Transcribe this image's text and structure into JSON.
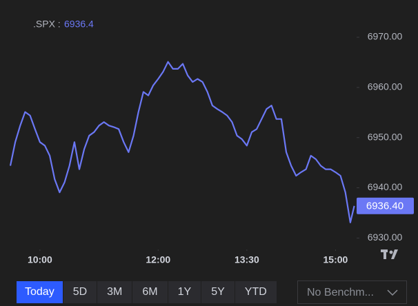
{
  "chart_data": {
    "type": "line",
    "title": ".SPX :",
    "x": [
      "09:30",
      "09:35",
      "09:40",
      "09:45",
      "09:50",
      "09:55",
      "10:00",
      "10:05",
      "10:10",
      "10:15",
      "10:20",
      "10:25",
      "10:30",
      "10:35",
      "10:40",
      "10:45",
      "10:50",
      "10:55",
      "11:00",
      "11:05",
      "11:10",
      "11:15",
      "11:20",
      "11:25",
      "11:30",
      "11:35",
      "11:40",
      "11:45",
      "11:50",
      "11:55",
      "12:00",
      "12:05",
      "12:10",
      "12:15",
      "12:20",
      "12:25",
      "12:30",
      "12:35",
      "12:40",
      "12:45",
      "12:50",
      "12:55",
      "13:00",
      "13:05",
      "13:10",
      "13:15",
      "13:20",
      "13:25",
      "13:30",
      "13:35",
      "13:40",
      "13:45",
      "13:50",
      "13:55",
      "14:00",
      "14:05",
      "14:10",
      "14:15",
      "14:20",
      "14:25",
      "14:30",
      "14:35",
      "14:40",
      "14:45",
      "14:50",
      "14:55",
      "15:00",
      "15:05",
      "15:10",
      "15:15",
      "15:19"
    ],
    "series": [
      {
        "name": ".SPX",
        "color": "#6b78f5",
        "values": [
          6944.4,
          6949.1,
          6952.4,
          6955.1,
          6954.4,
          6951.7,
          6949.1,
          6948.4,
          6946.4,
          6941.7,
          6939.1,
          6941.1,
          6944.4,
          6949.1,
          6943.7,
          6947.7,
          6950.4,
          6951.1,
          6952.4,
          6953.1,
          6952.4,
          6952.1,
          6951.7,
          6949.1,
          6947.1,
          6950.4,
          6955.1,
          6959.1,
          6958.4,
          6960.4,
          6961.7,
          6963.1,
          6965.1,
          6963.7,
          6963.7,
          6964.7,
          6962.4,
          6961.1,
          6961.7,
          6961.1,
          6959.1,
          6956.4,
          6955.7,
          6955.1,
          6954.4,
          6953.1,
          6950.4,
          6949.7,
          6948.4,
          6951.1,
          6951.7,
          6953.7,
          6955.7,
          6956.4,
          6953.7,
          6953.7,
          6947.1,
          6944.4,
          6942.4,
          6943.1,
          6943.7,
          6946.4,
          6945.7,
          6944.4,
          6943.7,
          6943.7,
          6943.1,
          6942.4,
          6939.1,
          6933.1,
          6936.4
        ],
        "value_labels": [
          null,
          null,
          null,
          null,
          null,
          null,
          null,
          null,
          null,
          null,
          null,
          null,
          null,
          null,
          null,
          null,
          null,
          null,
          null,
          null,
          null,
          null,
          null,
          null,
          null,
          null,
          null,
          null,
          null,
          null,
          null,
          null,
          null,
          null,
          null,
          null,
          null,
          null,
          null,
          null,
          null,
          null,
          null,
          null,
          null,
          null,
          null,
          null,
          null,
          null,
          null,
          null,
          null,
          null,
          null,
          null,
          null,
          null,
          null,
          null,
          null,
          null,
          null,
          null,
          null,
          null,
          null,
          null,
          null,
          null,
          "6936.40"
        ]
      }
    ],
    "xlim": [
      "09:30",
      "15:20"
    ],
    "xticks": [
      "10:00",
      "12:00",
      "13:30",
      "15:00"
    ],
    "ylim": [
      6928.4,
      6973.3
    ],
    "yticks": [
      {
        "value": 6930,
        "label": "6930.00"
      },
      {
        "value": 6940,
        "label": "6940.00"
      },
      {
        "value": 6950,
        "label": "6950.00"
      },
      {
        "value": 6960,
        "label": "6960.00"
      },
      {
        "value": 6970,
        "label": "6970.00"
      }
    ],
    "grid": false
  },
  "controls": {
    "ranges": [
      "Today",
      "5D",
      "3M",
      "6M",
      "1Y",
      "5Y",
      "YTD"
    ],
    "benchmark": "No Benchm..."
  }
}
